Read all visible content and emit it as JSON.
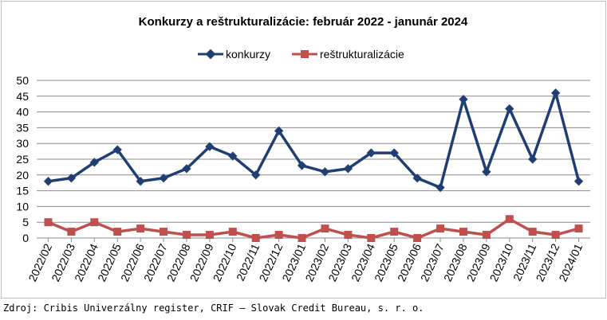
{
  "chart_data": {
    "type": "line",
    "title": "Konkurzy a reštrukturalizácie: február 2022 - janunár 2024",
    "categories": [
      "2022/02",
      "2022/03",
      "2022/04",
      "2022/05",
      "2022/06",
      "2022/07",
      "2022/08",
      "2022/09",
      "2022/10",
      "2022/11",
      "2022/12",
      "2023/01",
      "2023/02",
      "2023/03",
      "2023/04",
      "2023/05",
      "2023/06",
      "2023/07",
      "2023/08",
      "2023/09",
      "2023/10",
      "2023/11",
      "2023/12",
      "2024/01"
    ],
    "series": [
      {
        "name": "konkurzy",
        "color": "#1f3f73",
        "marker": "diamond",
        "values": [
          18,
          19,
          24,
          28,
          18,
          19,
          22,
          29,
          26,
          20,
          34,
          23,
          21,
          22,
          27,
          27,
          19,
          16,
          44,
          21,
          41,
          25,
          46,
          18
        ]
      },
      {
        "name": "reštrukturalizácie",
        "color": "#c0504d",
        "marker": "square",
        "values": [
          5,
          2,
          5,
          2,
          3,
          2,
          1,
          1,
          2,
          0,
          1,
          0,
          3,
          1,
          0,
          2,
          0,
          3,
          2,
          1,
          6,
          2,
          1,
          3
        ]
      }
    ],
    "ylim": [
      0,
      50
    ],
    "yticks": [
      0,
      5,
      10,
      15,
      20,
      25,
      30,
      35,
      40,
      45,
      50
    ],
    "grid": true,
    "legend_position": "top-center"
  },
  "source_text": "Zdroj: Cribis Univerzálny register, CRIF – Slovak Credit Bureau, s. r. o."
}
